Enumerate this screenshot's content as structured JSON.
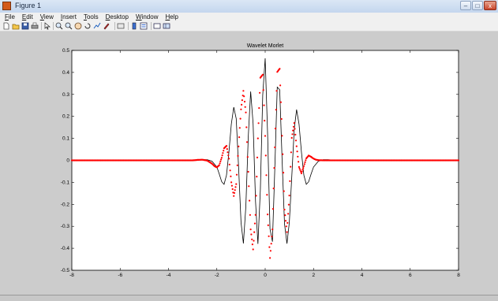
{
  "window": {
    "title": "Figure 1",
    "buttons": {
      "minimize": "–",
      "maximize": "□",
      "close": "x"
    }
  },
  "menu": [
    "File",
    "Edit",
    "View",
    "Insert",
    "Tools",
    "Desktop",
    "Window",
    "Help"
  ],
  "toolbar": {
    "icons": [
      "new-figure-icon",
      "open-file-icon",
      "save-figure-icon",
      "print-figure-icon",
      "edit-plot-icon",
      "zoom-in-icon",
      "zoom-out-icon",
      "pan-icon",
      "rotate-3d-icon",
      "data-cursor-icon",
      "brush-icon",
      "link-plot-icon",
      "insert-colorbar-icon",
      "insert-legend-icon",
      "hide-plot-tools-icon",
      "show-plot-tools-icon"
    ]
  },
  "colors": {
    "figure_bg": "#cccccc",
    "axes_bg": "#ffffff",
    "series_black": "#000000",
    "series_red": "#ff0000"
  },
  "chart_data": {
    "type": "line",
    "title": "Wavelet Morlet",
    "xlabel": "",
    "ylabel": "",
    "xlim": [
      -8,
      8
    ],
    "ylim": [
      -0.5,
      0.5
    ],
    "xticks": [
      -8,
      -6,
      -4,
      -2,
      0,
      2,
      4,
      6,
      8
    ],
    "yticks": [
      -0.5,
      -0.4,
      -0.3,
      -0.2,
      -0.1,
      0,
      0.1,
      0.2,
      0.3,
      0.4,
      0.5
    ],
    "grid": false,
    "series": [
      {
        "style": "solid black line",
        "color": "#000000",
        "x": [
          -8,
          -7.5,
          -7,
          -6.5,
          -6,
          -5.5,
          -5,
          -4.5,
          -4,
          -3.5,
          -3,
          -2.8,
          -2.6,
          -2.4,
          -2.2,
          -2.0,
          -1.9,
          -1.8,
          -1.7,
          -1.6,
          -1.5,
          -1.4,
          -1.3,
          -1.2,
          -1.1,
          -1.0,
          -0.9,
          -0.8,
          -0.7,
          -0.6,
          -0.5,
          -0.4,
          -0.3,
          -0.2,
          -0.1,
          0,
          0.1,
          0.2,
          0.3,
          0.4,
          0.5,
          0.6,
          0.7,
          0.8,
          0.9,
          1.0,
          1.1,
          1.2,
          1.3,
          1.4,
          1.5,
          1.6,
          1.7,
          1.8,
          1.9,
          2.0,
          2.2,
          2.4,
          2.6,
          2.8,
          3,
          3.5,
          4,
          4.5,
          5,
          5.5,
          6,
          6.5,
          7,
          7.5,
          8
        ],
        "y": [
          0,
          0,
          0,
          0,
          0,
          0,
          0,
          0,
          0,
          0,
          0,
          0.001,
          0.003,
          0.003,
          -0.004,
          -0.03,
          -0.062,
          -0.097,
          -0.109,
          -0.067,
          0.039,
          0.165,
          0.242,
          0.19,
          -0.03,
          -0.282,
          -0.378,
          -0.21,
          0.109,
          0.313,
          0.167,
          -0.188,
          -0.38,
          -0.133,
          0.297,
          0.464,
          0.117,
          -0.311,
          -0.37,
          -0.026,
          0.333,
          0.321,
          0.007,
          -0.289,
          -0.379,
          -0.282,
          -0.075,
          0.141,
          0.231,
          0.165,
          0.039,
          -0.067,
          -0.109,
          -0.097,
          -0.062,
          -0.03,
          -0.004,
          0.003,
          0.003,
          0.001,
          0,
          0,
          0,
          0,
          0,
          0,
          0,
          0,
          0,
          0,
          0
        ]
      },
      {
        "style": "red dotted markers",
        "color": "#ff0000",
        "x": [
          -8,
          -7.5,
          -7,
          -6.5,
          -6,
          -5.5,
          -5,
          -4.5,
          -4,
          -3.5,
          -3,
          -2.8,
          -2.6,
          -2.4,
          -2.2,
          -2.1,
          -2.0,
          -1.9,
          -1.8,
          -1.7,
          -1.6,
          -1.5,
          -1.4,
          -1.3,
          -1.2,
          -1.1,
          -1.0,
          -0.9,
          -0.8,
          -0.7,
          -0.6,
          -0.5,
          -0.4,
          -0.3,
          -0.2,
          -0.1,
          0,
          0.1,
          0.2,
          0.3,
          0.4,
          0.5,
          0.6,
          0.7,
          0.8,
          0.9,
          1.0,
          1.1,
          1.2,
          1.3,
          1.4,
          1.5,
          1.6,
          1.7,
          1.8,
          1.9,
          2.0,
          2.1,
          2.2,
          2.4,
          2.6,
          2.8,
          3,
          3.5,
          4,
          4.5,
          5,
          5.5,
          6,
          6.5,
          7,
          7.5,
          8
        ],
        "y": [
          0,
          0,
          0,
          0,
          0,
          0,
          0,
          0,
          0,
          0,
          0,
          0.002,
          0.003,
          -0.001,
          -0.015,
          -0.026,
          -0.032,
          -0.022,
          0.012,
          0.055,
          0.066,
          0.008,
          -0.1,
          -0.162,
          -0.108,
          0.063,
          0.232,
          0.316,
          0.218,
          -0.052,
          -0.314,
          -0.405,
          -0.248,
          0.1,
          0.376,
          0.39,
          0.111,
          -0.246,
          -0.444,
          -0.314,
          0.059,
          0.402,
          0.417,
          0.112,
          -0.224,
          -0.326,
          -0.16,
          0.102,
          0.17,
          0.064,
          -0.03,
          -0.059,
          -0.026,
          0.009,
          0.022,
          0.016,
          0.008,
          0.003,
          0.001,
          0,
          0,
          0,
          0,
          0,
          0,
          0,
          0,
          0,
          0,
          0,
          0,
          0,
          0
        ]
      }
    ]
  }
}
